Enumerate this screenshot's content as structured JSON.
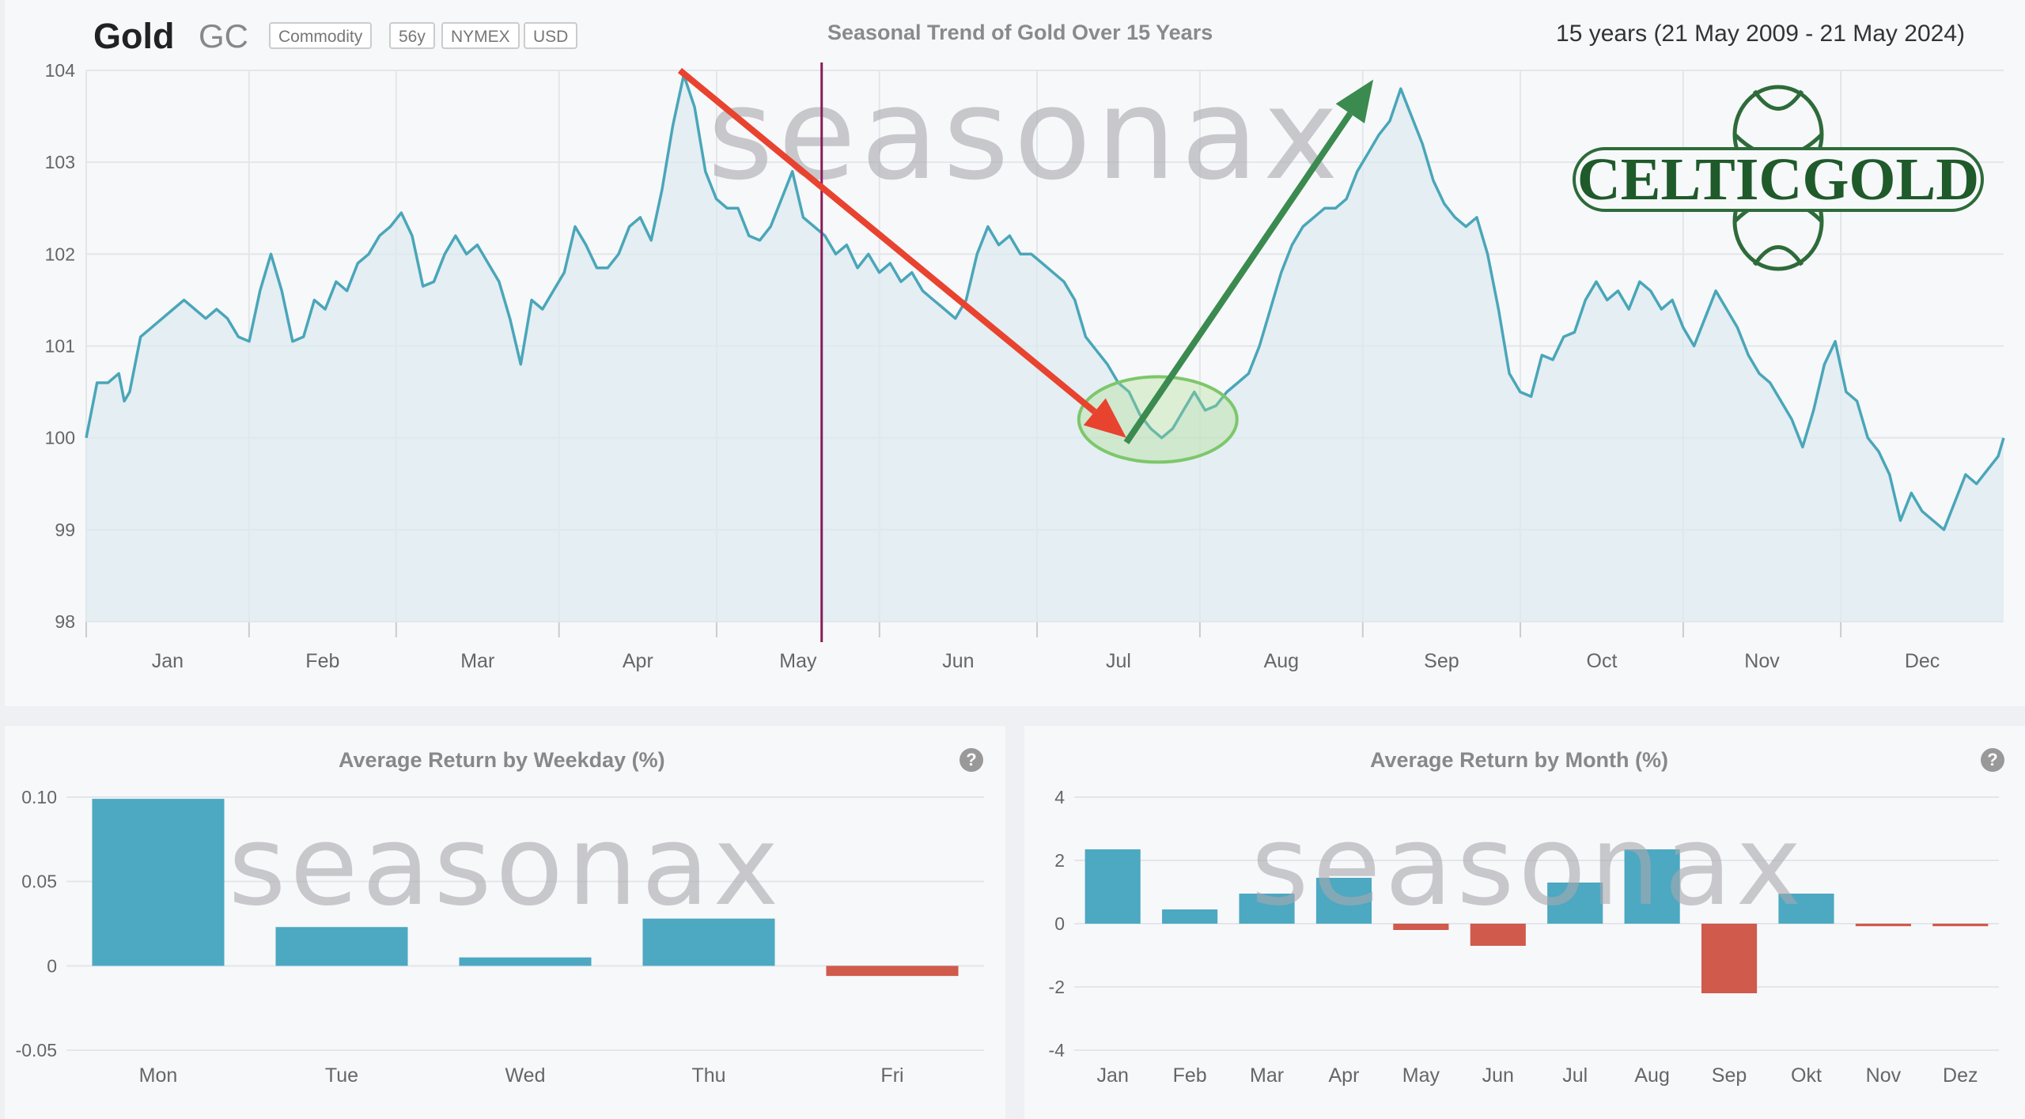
{
  "header": {
    "title": "Gold",
    "symbol": "GC",
    "tags": [
      "Commodity",
      "56y",
      "NYMEX",
      "USD"
    ],
    "chart_title": "Seasonal Trend of Gold Over 15 Years",
    "period": "15 years (21 May 2009 - 21 May 2024)"
  },
  "watermark": "seasonax",
  "logo_text": "CELTICGOLD",
  "colors": {
    "line": "#4aa6b9",
    "area": "#dceaf0",
    "bar_positive": "#4da8c2",
    "bar_negative": "#d05a4c",
    "arrow_down": "#e8432f",
    "arrow_up": "#3b8a4f",
    "current_marker": "#8a1a5a",
    "ellipse": "#7dc76a"
  },
  "chart_data": [
    {
      "type": "line",
      "title": "Seasonal Trend of Gold Over 15 Years",
      "x_ticks": [
        "Jan",
        "Feb",
        "Mar",
        "Apr",
        "May",
        "Jun",
        "Jul",
        "Aug",
        "Sep",
        "Oct",
        "Nov",
        "Dec"
      ],
      "y_ticks": [
        "104",
        "103",
        "102",
        "101",
        "100",
        "99",
        "98"
      ],
      "ylim": [
        98,
        104
      ],
      "grid": true,
      "current_day_marker": "May 21",
      "series": [
        {
          "points": [
            [
              0,
              100.0
            ],
            [
              2,
              100.6
            ],
            [
              4,
              100.6
            ],
            [
              6,
              100.7
            ],
            [
              7,
              100.4
            ],
            [
              8,
              100.5
            ],
            [
              10,
              101.1
            ],
            [
              12,
              101.2
            ],
            [
              14,
              101.3
            ],
            [
              16,
              101.4
            ],
            [
              18,
              101.5
            ],
            [
              20,
              101.4
            ],
            [
              22,
              101.3
            ],
            [
              24,
              101.4
            ],
            [
              26,
              101.3
            ],
            [
              28,
              101.1
            ],
            [
              30,
              101.05
            ],
            [
              32,
              101.6
            ],
            [
              34,
              102.0
            ],
            [
              36,
              101.6
            ],
            [
              38,
              101.05
            ],
            [
              40,
              101.1
            ],
            [
              42,
              101.5
            ],
            [
              44,
              101.4
            ],
            [
              46,
              101.7
            ],
            [
              48,
              101.6
            ],
            [
              50,
              101.9
            ],
            [
              52,
              102.0
            ],
            [
              54,
              102.2
            ],
            [
              56,
              102.3
            ],
            [
              58,
              102.45
            ],
            [
              60,
              102.2
            ],
            [
              62,
              101.65
            ],
            [
              64,
              101.7
            ],
            [
              66,
              102.0
            ],
            [
              68,
              102.2
            ],
            [
              70,
              102.0
            ],
            [
              72,
              102.1
            ],
            [
              74,
              101.9
            ],
            [
              76,
              101.7
            ],
            [
              78,
              101.3
            ],
            [
              80,
              100.8
            ],
            [
              82,
              101.5
            ],
            [
              84,
              101.4
            ],
            [
              86,
              101.6
            ],
            [
              88,
              101.8
            ],
            [
              90,
              102.3
            ],
            [
              92,
              102.1
            ],
            [
              94,
              101.85
            ],
            [
              96,
              101.85
            ],
            [
              98,
              102.0
            ],
            [
              100,
              102.3
            ],
            [
              102,
              102.4
            ],
            [
              104,
              102.15
            ],
            [
              106,
              102.7
            ],
            [
              108,
              103.4
            ],
            [
              110,
              103.95
            ],
            [
              112,
              103.6
            ],
            [
              114,
              102.9
            ],
            [
              116,
              102.6
            ],
            [
              118,
              102.5
            ],
            [
              120,
              102.5
            ],
            [
              122,
              102.2
            ],
            [
              124,
              102.15
            ],
            [
              126,
              102.3
            ],
            [
              128,
              102.6
            ],
            [
              130,
              102.9
            ],
            [
              132,
              102.4
            ],
            [
              134,
              102.3
            ],
            [
              136,
              102.2
            ],
            [
              138,
              102.0
            ],
            [
              140,
              102.1
            ],
            [
              142,
              101.85
            ],
            [
              144,
              102.0
            ],
            [
              146,
              101.8
            ],
            [
              148,
              101.9
            ],
            [
              150,
              101.7
            ],
            [
              152,
              101.8
            ],
            [
              154,
              101.6
            ],
            [
              156,
              101.5
            ],
            [
              158,
              101.4
            ],
            [
              160,
              101.3
            ],
            [
              162,
              101.5
            ],
            [
              164,
              102.0
            ],
            [
              166,
              102.3
            ],
            [
              168,
              102.1
            ],
            [
              170,
              102.2
            ],
            [
              172,
              102.0
            ],
            [
              174,
              102.0
            ],
            [
              176,
              101.9
            ],
            [
              178,
              101.8
            ],
            [
              180,
              101.7
            ],
            [
              182,
              101.5
            ],
            [
              184,
              101.1
            ],
            [
              186,
              100.95
            ],
            [
              188,
              100.8
            ],
            [
              190,
              100.6
            ],
            [
              192,
              100.5
            ],
            [
              194,
              100.25
            ],
            [
              196,
              100.1
            ],
            [
              198,
              100.0
            ],
            [
              200,
              100.1
            ],
            [
              202,
              100.3
            ],
            [
              204,
              100.5
            ],
            [
              206,
              100.3
            ],
            [
              208,
              100.35
            ],
            [
              210,
              100.5
            ],
            [
              212,
              100.6
            ],
            [
              214,
              100.7
            ],
            [
              216,
              101.0
            ],
            [
              218,
              101.4
            ],
            [
              220,
              101.8
            ],
            [
              222,
              102.1
            ],
            [
              224,
              102.3
            ],
            [
              226,
              102.4
            ],
            [
              228,
              102.5
            ],
            [
              230,
              102.5
            ],
            [
              232,
              102.6
            ],
            [
              234,
              102.9
            ],
            [
              236,
              103.1
            ],
            [
              238,
              103.3
            ],
            [
              240,
              103.45
            ],
            [
              242,
              103.8
            ],
            [
              244,
              103.5
            ],
            [
              246,
              103.2
            ],
            [
              248,
              102.8
            ],
            [
              250,
              102.55
            ],
            [
              252,
              102.4
            ],
            [
              254,
              102.3
            ],
            [
              256,
              102.4
            ],
            [
              258,
              102.0
            ],
            [
              260,
              101.4
            ],
            [
              262,
              100.7
            ],
            [
              264,
              100.5
            ],
            [
              266,
              100.45
            ],
            [
              268,
              100.9
            ],
            [
              270,
              100.85
            ],
            [
              272,
              101.1
            ],
            [
              274,
              101.15
            ],
            [
              276,
              101.5
            ],
            [
              278,
              101.7
            ],
            [
              280,
              101.5
            ],
            [
              282,
              101.6
            ],
            [
              284,
              101.4
            ],
            [
              286,
              101.7
            ],
            [
              288,
              101.6
            ],
            [
              290,
              101.4
            ],
            [
              292,
              101.5
            ],
            [
              294,
              101.2
            ],
            [
              296,
              101.0
            ],
            [
              298,
              101.3
            ],
            [
              300,
              101.6
            ],
            [
              302,
              101.4
            ],
            [
              304,
              101.2
            ],
            [
              306,
              100.9
            ],
            [
              308,
              100.7
            ],
            [
              310,
              100.6
            ],
            [
              312,
              100.4
            ],
            [
              314,
              100.2
            ],
            [
              316,
              99.9
            ],
            [
              318,
              100.3
            ],
            [
              320,
              100.8
            ],
            [
              322,
              101.05
            ],
            [
              324,
              100.5
            ],
            [
              326,
              100.4
            ],
            [
              328,
              100.0
            ],
            [
              330,
              99.85
            ],
            [
              332,
              99.6
            ],
            [
              334,
              99.1
            ],
            [
              336,
              99.4
            ],
            [
              338,
              99.2
            ],
            [
              340,
              99.1
            ],
            [
              342,
              99.0
            ],
            [
              344,
              99.3
            ],
            [
              346,
              99.6
            ],
            [
              348,
              99.5
            ],
            [
              350,
              99.65
            ],
            [
              352,
              99.8
            ],
            [
              353,
              100.0
            ]
          ]
        }
      ]
    },
    {
      "type": "bar",
      "title": "Average Return by Weekday (%)",
      "categories": [
        "Mon",
        "Tue",
        "Wed",
        "Thu",
        "Fri"
      ],
      "values": [
        0.099,
        0.023,
        0.005,
        0.028,
        -0.006
      ],
      "y_ticks": [
        "0.10",
        "0.05",
        "0",
        "-0.05"
      ],
      "ylim": [
        -0.05,
        0.1
      ]
    },
    {
      "type": "bar",
      "title": "Average Return by Month (%)",
      "categories": [
        "Jan",
        "Feb",
        "Mar",
        "Apr",
        "May",
        "Jun",
        "Jul",
        "Aug",
        "Sep",
        "Okt",
        "Nov",
        "Dez"
      ],
      "values": [
        2.35,
        0.45,
        0.95,
        1.45,
        -0.2,
        -0.7,
        1.3,
        2.35,
        -2.2,
        0.95,
        -0.08,
        -0.08
      ],
      "y_ticks": [
        "4",
        "2",
        "0",
        "-2",
        "-4"
      ],
      "ylim": [
        -4,
        4
      ]
    }
  ]
}
